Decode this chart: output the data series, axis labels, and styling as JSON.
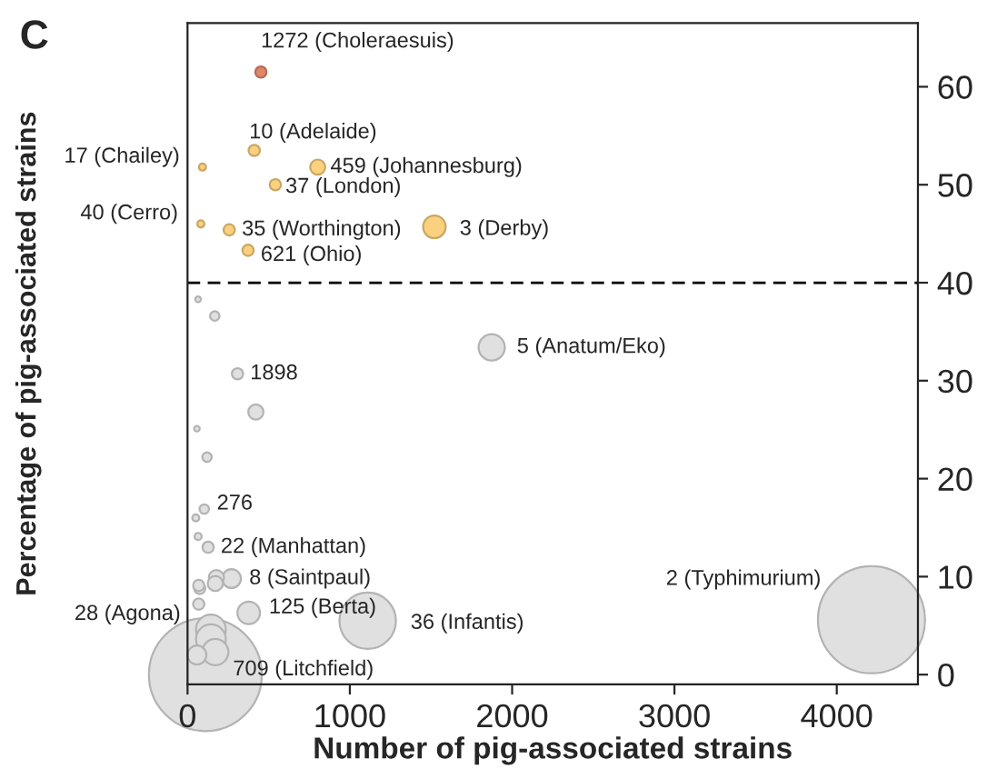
{
  "chart_data": {
    "type": "bubble",
    "xlabel": "Number of pig-associated strains",
    "ylabel": "Percentage of pig-associated strains",
    "x": [
      452,
      92,
      411,
      802,
      541,
      82,
      257,
      1521,
      373,
      65,
      168,
      1874,
      308,
      421,
      58,
      120,
      103,
      51,
      65,
      127,
      271,
      178,
      171,
      69,
      75,
      69,
      377,
      1110,
      144,
      171,
      58,
      144,
      110,
      4214
    ],
    "values": [
      61.5,
      51.8,
      53.5,
      51.8,
      50.0,
      46.0,
      45.4,
      45.7,
      43.3,
      38.3,
      36.6,
      33.4,
      30.7,
      26.8,
      25.1,
      22.2,
      16.9,
      16.0,
      14.1,
      13.0,
      9.8,
      9.9,
      9.3,
      9.1,
      8.8,
      7.2,
      6.3,
      5.5,
      4.6,
      2.3,
      2.0,
      3.6,
      0,
      5.6
    ],
    "sizes": [
      0.01,
      0.004,
      0.01,
      0.018,
      0.01,
      0.004,
      0.01,
      0.04,
      0.01,
      0.0025,
      0.007,
      0.054,
      0.01,
      0.018,
      0.0025,
      0.007,
      0.007,
      0.004,
      0.004,
      0.01,
      0.028,
      0.018,
      0.018,
      0.01,
      0.01,
      0.01,
      0.04,
      0.25,
      0.07,
      0.054,
      0.028,
      0.07,
      1,
      0.9
    ],
    "colors": [
      "#e0876a",
      "#fbd17f",
      "#fbd17f",
      "#fbd17f",
      "#fbd17f",
      "#fbd17f",
      "#fbd17f",
      "#fbd17f",
      "#fbd17f",
      "#e0e0e0",
      "#e0e0e0",
      "#e0e0e0",
      "#e0e0e0",
      "#e0e0e0",
      "#e0e0e0",
      "#e0e0e0",
      "#e0e0e0",
      "#e0e0e0",
      "#e0e0e0",
      "#e0e0e0",
      "#e0e0e0",
      "#e0e0e0",
      "#e0e0e0",
      "#e0e0e0",
      "#e0e0e0",
      "#e0e0e0",
      "#e0e0e0",
      "#e0e0e0",
      "#e0e0e0",
      "#e0e0e0",
      "#e0e0e0",
      "#e0e0e0",
      "#e0e0e0",
      "#e0e0e0"
    ],
    "xlim": [
      0,
      4500
    ],
    "xticks": [
      0,
      1000,
      2000,
      3000,
      4000
    ],
    "ylim": [
      -1,
      66.5
    ],
    "yticks": [
      0,
      10,
      20,
      30,
      40,
      50,
      60
    ],
    "ref_lines": [
      {
        "axis": "y",
        "value": 40,
        "line_style": "dashed",
        "color": "#000000"
      }
    ],
    "annotations": [
      "C",
      {
        "text": "1272 (Choleraesuis)",
        "x": 452,
        "y": 61.5
      },
      {
        "text": "17 (Chailey)",
        "x": 92,
        "y": 51.8
      },
      {
        "text": "10 (Adelaide)",
        "x": 411,
        "y": 53.5
      },
      {
        "text": "459 (Johannesburg)",
        "x": 802,
        "y": 51.8
      },
      {
        "text": "37 (London)",
        "x": 541,
        "y": 50.0
      },
      {
        "text": "40 (Cerro)",
        "x": 82,
        "y": 46.0
      },
      {
        "text": "35 (Worthington)",
        "x": 257,
        "y": 45.4
      },
      {
        "text": "3 (Derby)",
        "x": 1521,
        "y": 45.7
      },
      {
        "text": "621 (Ohio)",
        "x": 373,
        "y": 43.3
      },
      {
        "text": "5 (Anatum/Eko)",
        "x": 1874,
        "y": 33.4
      },
      {
        "text": "1898",
        "x": 308,
        "y": 30.7
      },
      {
        "text": "276",
        "x": 103,
        "y": 16.9
      },
      {
        "text": "22 (Manhattan)",
        "x": 127,
        "y": 13.0
      },
      {
        "text": "8 (Saintpaul)",
        "x": 271,
        "y": 9.8
      },
      {
        "text": "125 (Berta)",
        "x": 377,
        "y": 6.3
      },
      {
        "text": "36 (Infantis)",
        "x": 1110,
        "y": 5.5
      },
      {
        "text": "28 (Agona)",
        "x": 144,
        "y": 4.6
      },
      {
        "text": "709 (Litchfield)",
        "x": 171,
        "y": 2.3
      },
      {
        "text": "2 (Typhimurium)",
        "x": 4214,
        "y": 5.6
      }
    ]
  }
}
